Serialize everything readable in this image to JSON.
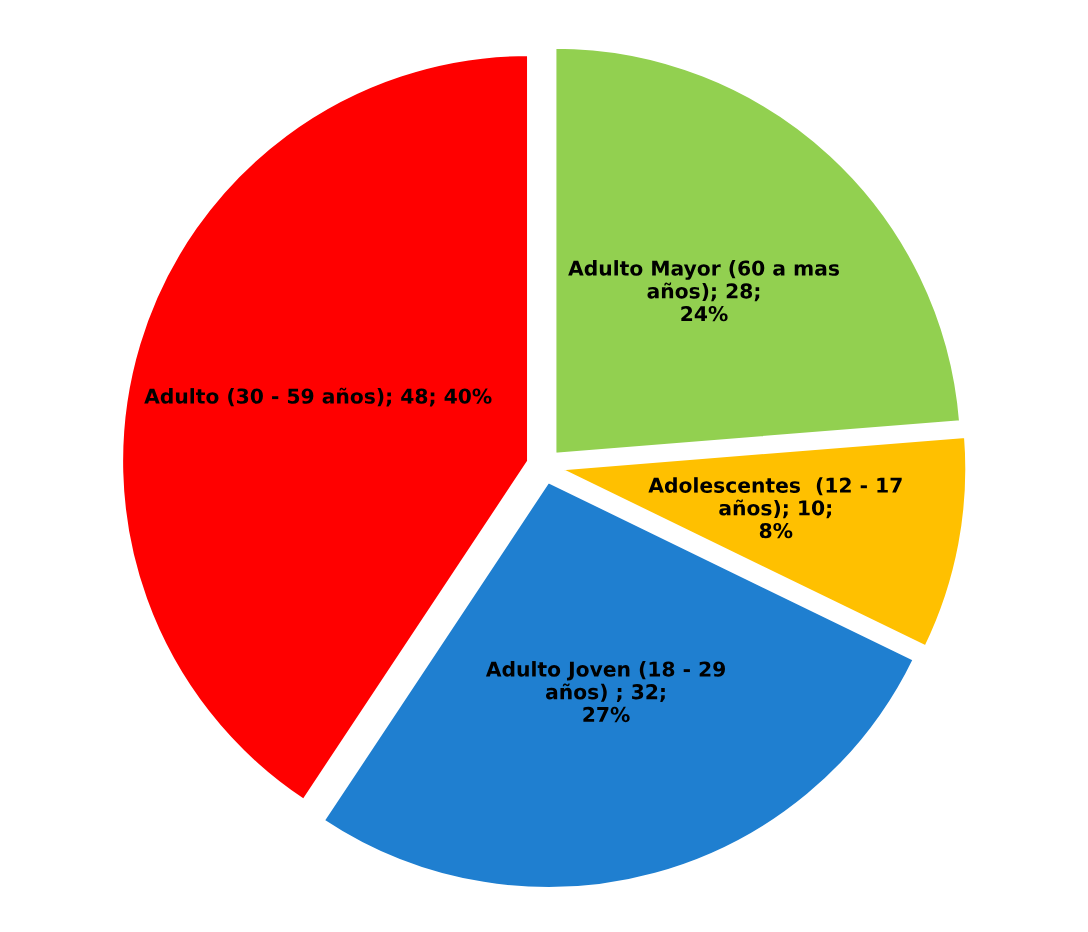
{
  "chart_data": {
    "type": "pie",
    "categories": [
      "Adulto Mayor (60 a mas\naños)",
      "Adolescentes  (12 - 17\naños)",
      "Adulto Joven (18 - 29\naños) ",
      "Adulto (30 - 59 años)"
    ],
    "values": [
      28,
      10,
      32,
      48
    ],
    "value_labels": [
      "28;\n24%",
      "10;\n8%",
      "32;\n27%",
      "48; 40%"
    ],
    "colors": [
      "#92d050",
      "#ffc000",
      "#1f7fd0",
      "#ff0000"
    ]
  }
}
